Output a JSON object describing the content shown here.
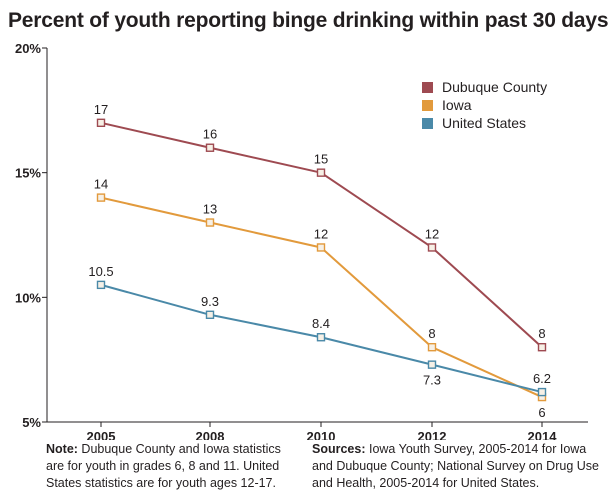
{
  "title": "Percent of youth reporting binge drinking within past 30 days",
  "chart_data": {
    "type": "line",
    "x": [
      "2005",
      "2008",
      "2010",
      "2012",
      "2014"
    ],
    "ylim": [
      5,
      20
    ],
    "yticks": [
      5,
      10,
      15,
      20
    ],
    "ytick_labels": [
      "5%",
      "10%",
      "15%",
      "20%"
    ],
    "grid": false,
    "legend_position": "top-right",
    "series": [
      {
        "name": "Dubuque County",
        "color": "#9e4a51",
        "values": [
          17,
          16,
          15,
          12,
          8
        ],
        "labels": [
          "17",
          "16",
          "15",
          "12",
          "8"
        ]
      },
      {
        "name": "Iowa",
        "color": "#e29a3c",
        "values": [
          14,
          13,
          12,
          8,
          6
        ],
        "labels": [
          "14",
          "13",
          "12",
          "8",
          "6"
        ]
      },
      {
        "name": "United States",
        "color": "#4a89a8",
        "values": [
          10.5,
          9.3,
          8.4,
          7.3,
          6.2
        ],
        "labels": [
          "10.5",
          "9.3",
          "8.4",
          "7.3",
          "6.2"
        ]
      }
    ]
  },
  "notes": {
    "left_label": "Note:",
    "left_text": " Dubuque County and Iowa statistics are for youth in grades 6, 8 and 11. United States statistics are for youth ages 12-17.",
    "right_label": "Sources:",
    "right_text": " Iowa Youth Survey, 2005-2014 for Iowa and Dubuque County; National Survey on Drug Use and Health, 2005-2014 for United States."
  }
}
